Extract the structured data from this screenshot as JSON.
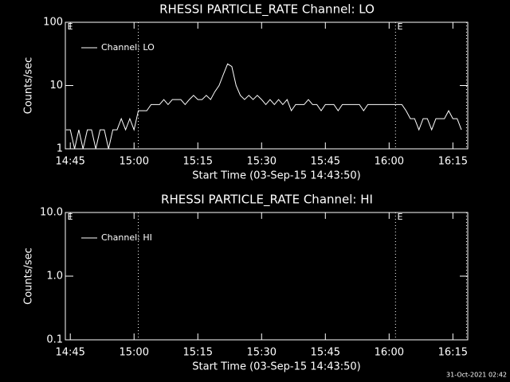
{
  "chart_data": [
    {
      "type": "line",
      "title": "RHESSI PARTICLE_RATE Channel: LO",
      "xlabel": "Start Time (03-Sep-15 14:43:50)",
      "ylabel": "Counts/sec",
      "log_y": true,
      "legend": "upper left",
      "xlim": [
        43.833,
        138.5
      ],
      "xticks": [
        {
          "value": 45,
          "label": "14:45"
        },
        {
          "value": 60,
          "label": "15:00"
        },
        {
          "value": 75,
          "label": "15:15"
        },
        {
          "value": 90,
          "label": "15:30"
        },
        {
          "value": 105,
          "label": "15:45"
        },
        {
          "value": 120,
          "label": "16:00"
        },
        {
          "value": 135,
          "label": "16:15"
        }
      ],
      "ylim": [
        1,
        100
      ],
      "yticks": [
        1,
        10,
        100
      ],
      "event_lines": [
        61,
        121.5,
        138.2
      ],
      "annotations": [
        {
          "text": "E",
          "x": 44.3
        },
        {
          "text": "E",
          "x": 121.9
        }
      ],
      "series": [
        {
          "name": "Channel: LO",
          "color": "#ffffff",
          "x": [
            44,
            45,
            46,
            47,
            48,
            49,
            50,
            51,
            52,
            53,
            54,
            55,
            56,
            57,
            58,
            59,
            60,
            61,
            62,
            63,
            64,
            65,
            66,
            67,
            68,
            69,
            70,
            71,
            72,
            73,
            74,
            75,
            76,
            77,
            78,
            79,
            80,
            81,
            82,
            83,
            84,
            85,
            86,
            87,
            88,
            89,
            90,
            91,
            92,
            93,
            94,
            95,
            96,
            97,
            98,
            99,
            100,
            101,
            102,
            103,
            104,
            105,
            106,
            107,
            108,
            109,
            110,
            111,
            112,
            113,
            114,
            115,
            116,
            117,
            118,
            119,
            120,
            121,
            122,
            123,
            124,
            125,
            126,
            127,
            128,
            129,
            130,
            131,
            132,
            133,
            134,
            135,
            136,
            137
          ],
          "values": [
            2,
            2,
            1,
            2,
            1,
            2,
            2,
            1,
            2,
            2,
            1,
            2,
            2,
            3,
            2,
            3,
            2,
            4,
            4,
            4,
            5,
            5,
            5,
            6,
            5,
            6,
            6,
            6,
            5,
            6,
            7,
            6,
            6,
            7,
            6,
            8,
            10,
            15,
            22,
            20,
            10,
            7,
            6,
            7,
            6,
            7,
            6,
            5,
            6,
            5,
            6,
            5,
            6,
            4,
            5,
            5,
            5,
            6,
            5,
            5,
            4,
            5,
            5,
            5,
            4,
            5,
            5,
            5,
            5,
            5,
            4,
            5,
            5,
            5,
            5,
            5,
            5,
            5,
            5,
            5,
            4,
            3,
            3,
            2,
            3,
            3,
            2,
            3,
            3,
            3,
            4,
            3,
            3,
            2
          ]
        }
      ]
    },
    {
      "type": "line",
      "title": "RHESSI PARTICLE_RATE Channel: HI",
      "xlabel": "Start Time (03-Sep-15 14:43:50)",
      "ylabel": "Counts/sec",
      "log_y": true,
      "legend": "upper left",
      "xlim": [
        43.833,
        138.5
      ],
      "xticks": [
        {
          "value": 45,
          "label": "14:45"
        },
        {
          "value": 60,
          "label": "15:00"
        },
        {
          "value": 75,
          "label": "15:15"
        },
        {
          "value": 90,
          "label": "15:30"
        },
        {
          "value": 105,
          "label": "15:45"
        },
        {
          "value": 120,
          "label": "16:00"
        },
        {
          "value": 135,
          "label": "16:15"
        }
      ],
      "ylim": [
        0.1,
        10
      ],
      "yticks": [
        0.1,
        {
          "value": 1,
          "label": "1.0"
        },
        {
          "value": 10,
          "label": "10.0"
        }
      ],
      "event_lines": [
        61,
        121.5,
        138.2
      ],
      "annotations": [
        {
          "text": "E",
          "x": 44.3
        },
        {
          "text": "E",
          "x": 121.9
        }
      ],
      "series": [
        {
          "name": "Channel: HI",
          "color": "#ffffff",
          "x": [],
          "values": []
        }
      ]
    }
  ],
  "footer": "31-Oct-2021 02:42"
}
